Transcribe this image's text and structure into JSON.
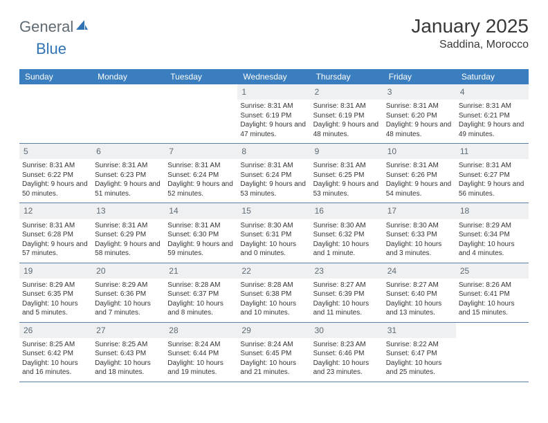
{
  "brand": {
    "general": "General",
    "blue": "Blue"
  },
  "title": "January 2025",
  "location": "Saddina, Morocco",
  "colors": {
    "header_bg": "#3a7ebf",
    "header_text": "#ffffff",
    "daynum_bg": "#eef0f2",
    "daynum_text": "#5d6a74",
    "row_border": "#5a7fa6",
    "title_color": "#383838",
    "logo_gray": "#5f6a72",
    "logo_blue": "#2f73b5",
    "body_text": "#333333",
    "page_bg": "#ffffff"
  },
  "weekdays": [
    "Sunday",
    "Monday",
    "Tuesday",
    "Wednesday",
    "Thursday",
    "Friday",
    "Saturday"
  ],
  "weeks": [
    [
      {
        "n": "",
        "sr": "",
        "ss": "",
        "dl": ""
      },
      {
        "n": "",
        "sr": "",
        "ss": "",
        "dl": ""
      },
      {
        "n": "",
        "sr": "",
        "ss": "",
        "dl": ""
      },
      {
        "n": "1",
        "sr": "Sunrise: 8:31 AM",
        "ss": "Sunset: 6:19 PM",
        "dl": "Daylight: 9 hours and 47 minutes."
      },
      {
        "n": "2",
        "sr": "Sunrise: 8:31 AM",
        "ss": "Sunset: 6:19 PM",
        "dl": "Daylight: 9 hours and 48 minutes."
      },
      {
        "n": "3",
        "sr": "Sunrise: 8:31 AM",
        "ss": "Sunset: 6:20 PM",
        "dl": "Daylight: 9 hours and 48 minutes."
      },
      {
        "n": "4",
        "sr": "Sunrise: 8:31 AM",
        "ss": "Sunset: 6:21 PM",
        "dl": "Daylight: 9 hours and 49 minutes."
      }
    ],
    [
      {
        "n": "5",
        "sr": "Sunrise: 8:31 AM",
        "ss": "Sunset: 6:22 PM",
        "dl": "Daylight: 9 hours and 50 minutes."
      },
      {
        "n": "6",
        "sr": "Sunrise: 8:31 AM",
        "ss": "Sunset: 6:23 PM",
        "dl": "Daylight: 9 hours and 51 minutes."
      },
      {
        "n": "7",
        "sr": "Sunrise: 8:31 AM",
        "ss": "Sunset: 6:24 PM",
        "dl": "Daylight: 9 hours and 52 minutes."
      },
      {
        "n": "8",
        "sr": "Sunrise: 8:31 AM",
        "ss": "Sunset: 6:24 PM",
        "dl": "Daylight: 9 hours and 53 minutes."
      },
      {
        "n": "9",
        "sr": "Sunrise: 8:31 AM",
        "ss": "Sunset: 6:25 PM",
        "dl": "Daylight: 9 hours and 53 minutes."
      },
      {
        "n": "10",
        "sr": "Sunrise: 8:31 AM",
        "ss": "Sunset: 6:26 PM",
        "dl": "Daylight: 9 hours and 54 minutes."
      },
      {
        "n": "11",
        "sr": "Sunrise: 8:31 AM",
        "ss": "Sunset: 6:27 PM",
        "dl": "Daylight: 9 hours and 56 minutes."
      }
    ],
    [
      {
        "n": "12",
        "sr": "Sunrise: 8:31 AM",
        "ss": "Sunset: 6:28 PM",
        "dl": "Daylight: 9 hours and 57 minutes."
      },
      {
        "n": "13",
        "sr": "Sunrise: 8:31 AM",
        "ss": "Sunset: 6:29 PM",
        "dl": "Daylight: 9 hours and 58 minutes."
      },
      {
        "n": "14",
        "sr": "Sunrise: 8:31 AM",
        "ss": "Sunset: 6:30 PM",
        "dl": "Daylight: 9 hours and 59 minutes."
      },
      {
        "n": "15",
        "sr": "Sunrise: 8:30 AM",
        "ss": "Sunset: 6:31 PM",
        "dl": "Daylight: 10 hours and 0 minutes."
      },
      {
        "n": "16",
        "sr": "Sunrise: 8:30 AM",
        "ss": "Sunset: 6:32 PM",
        "dl": "Daylight: 10 hours and 1 minute."
      },
      {
        "n": "17",
        "sr": "Sunrise: 8:30 AM",
        "ss": "Sunset: 6:33 PM",
        "dl": "Daylight: 10 hours and 3 minutes."
      },
      {
        "n": "18",
        "sr": "Sunrise: 8:29 AM",
        "ss": "Sunset: 6:34 PM",
        "dl": "Daylight: 10 hours and 4 minutes."
      }
    ],
    [
      {
        "n": "19",
        "sr": "Sunrise: 8:29 AM",
        "ss": "Sunset: 6:35 PM",
        "dl": "Daylight: 10 hours and 5 minutes."
      },
      {
        "n": "20",
        "sr": "Sunrise: 8:29 AM",
        "ss": "Sunset: 6:36 PM",
        "dl": "Daylight: 10 hours and 7 minutes."
      },
      {
        "n": "21",
        "sr": "Sunrise: 8:28 AM",
        "ss": "Sunset: 6:37 PM",
        "dl": "Daylight: 10 hours and 8 minutes."
      },
      {
        "n": "22",
        "sr": "Sunrise: 8:28 AM",
        "ss": "Sunset: 6:38 PM",
        "dl": "Daylight: 10 hours and 10 minutes."
      },
      {
        "n": "23",
        "sr": "Sunrise: 8:27 AM",
        "ss": "Sunset: 6:39 PM",
        "dl": "Daylight: 10 hours and 11 minutes."
      },
      {
        "n": "24",
        "sr": "Sunrise: 8:27 AM",
        "ss": "Sunset: 6:40 PM",
        "dl": "Daylight: 10 hours and 13 minutes."
      },
      {
        "n": "25",
        "sr": "Sunrise: 8:26 AM",
        "ss": "Sunset: 6:41 PM",
        "dl": "Daylight: 10 hours and 15 minutes."
      }
    ],
    [
      {
        "n": "26",
        "sr": "Sunrise: 8:25 AM",
        "ss": "Sunset: 6:42 PM",
        "dl": "Daylight: 10 hours and 16 minutes."
      },
      {
        "n": "27",
        "sr": "Sunrise: 8:25 AM",
        "ss": "Sunset: 6:43 PM",
        "dl": "Daylight: 10 hours and 18 minutes."
      },
      {
        "n": "28",
        "sr": "Sunrise: 8:24 AM",
        "ss": "Sunset: 6:44 PM",
        "dl": "Daylight: 10 hours and 19 minutes."
      },
      {
        "n": "29",
        "sr": "Sunrise: 8:24 AM",
        "ss": "Sunset: 6:45 PM",
        "dl": "Daylight: 10 hours and 21 minutes."
      },
      {
        "n": "30",
        "sr": "Sunrise: 8:23 AM",
        "ss": "Sunset: 6:46 PM",
        "dl": "Daylight: 10 hours and 23 minutes."
      },
      {
        "n": "31",
        "sr": "Sunrise: 8:22 AM",
        "ss": "Sunset: 6:47 PM",
        "dl": "Daylight: 10 hours and 25 minutes."
      },
      {
        "n": "",
        "sr": "",
        "ss": "",
        "dl": ""
      }
    ]
  ]
}
